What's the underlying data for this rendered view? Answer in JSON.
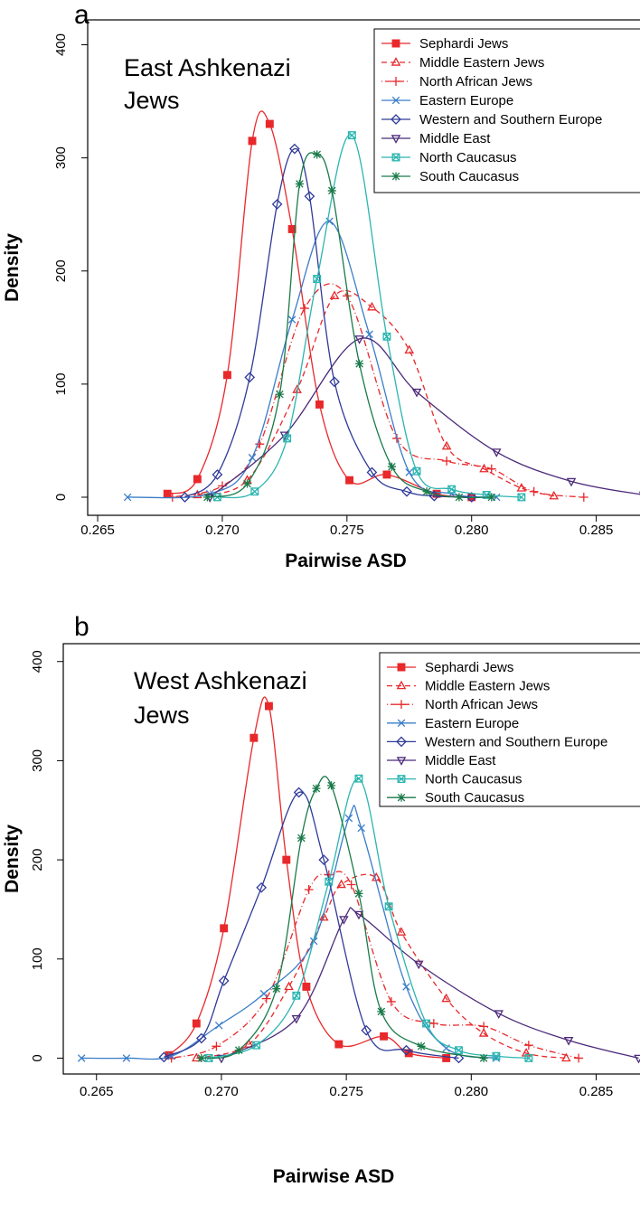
{
  "chart_data": [
    {
      "type": "line",
      "panel": "a",
      "annotation": [
        "East Ashkenazi",
        "Jews"
      ],
      "x_label": "Pairwise ASD",
      "y_label": "Density",
      "xlim": [
        0.2646,
        0.2869
      ],
      "ylim": [
        -16,
        422
      ],
      "xticks": [
        0.265,
        {
          "value": 0.27,
          "label": "0.270"
        },
        0.275,
        {
          "value": 0.28,
          "label": "0.280"
        },
        0.285
      ],
      "yticks": [
        0,
        100,
        200,
        300,
        400
      ],
      "legend": "top-right",
      "series": [
        {
          "name": "Sephardi Jews",
          "color": "#e8282b",
          "line_style": "solid",
          "marker": "square",
          "x": [
            0.2678,
            0.269,
            0.2702,
            0.2712,
            0.2719,
            0.2728,
            0.2739,
            0.2751,
            0.2766,
            0.2786,
            0.28
          ],
          "values": [
            3,
            16,
            108,
            315,
            330,
            237,
            82,
            15,
            20,
            3,
            0
          ]
        },
        {
          "name": "Middle Eastern Jews",
          "color": "#e8282b",
          "line_style": "dashed",
          "marker": "triangle",
          "x": [
            0.269,
            0.271,
            0.273,
            0.2745,
            0.276,
            0.2775,
            0.279,
            0.2805,
            0.282,
            0.2833
          ],
          "values": [
            2,
            15,
            95,
            178,
            168,
            130,
            45,
            25,
            8,
            1
          ]
        },
        {
          "name": "North African Jews",
          "color": "#e8282b",
          "line_style": "dotdash",
          "marker": "plus",
          "x": [
            0.268,
            0.27,
            0.2715,
            0.2733,
            0.275,
            0.277,
            0.279,
            0.2808,
            0.2825,
            0.2845
          ],
          "values": [
            0,
            10,
            47,
            167,
            178,
            52,
            32,
            25,
            5,
            0
          ]
        },
        {
          "name": "Eastern Europe",
          "color": "#3a7dc9",
          "line_style": "solid",
          "marker": "x",
          "x": [
            0.2662,
            0.2695,
            0.2712,
            0.2728,
            0.2743,
            0.2759,
            0.2775,
            0.2792,
            0.281
          ],
          "values": [
            0,
            3,
            35,
            157,
            244,
            144,
            22,
            3,
            0
          ]
        },
        {
          "name": "Western and Southern Europe",
          "color": "#2f3a99",
          "line_style": "solid",
          "marker": "diamond",
          "x": [
            0.2685,
            0.2698,
            0.2711,
            0.2722,
            0.2729,
            0.2735,
            0.2745,
            0.276,
            0.2774,
            0.2785,
            0.28
          ],
          "values": [
            0,
            20,
            106,
            259,
            308,
            266,
            102,
            22,
            5,
            1,
            0
          ]
        },
        {
          "name": "Middle East",
          "color": "#4b2a7a",
          "line_style": "solid",
          "marker": "triangle-down",
          "x": [
            0.2695,
            0.2725,
            0.2755,
            0.2778,
            0.281,
            0.284,
            0.2869
          ],
          "values": [
            0,
            55,
            140,
            93,
            40,
            14,
            2
          ]
        },
        {
          "name": "North Caucasus",
          "color": "#2bb5b0",
          "line_style": "solid",
          "marker": "boxed-x",
          "x": [
            0.2698,
            0.2713,
            0.2726,
            0.2738,
            0.2752,
            0.2766,
            0.2778,
            0.2792,
            0.2806,
            0.282
          ],
          "values": [
            0,
            5,
            52,
            193,
            320,
            142,
            23,
            7,
            2,
            0
          ]
        },
        {
          "name": "South Caucasus",
          "color": "#1a7a4a",
          "line_style": "solid",
          "marker": "asterisk",
          "x": [
            0.2694,
            0.271,
            0.2723,
            0.2731,
            0.2738,
            0.2744,
            0.2755,
            0.2768,
            0.2782,
            0.2795,
            0.2808
          ],
          "values": [
            0,
            12,
            91,
            277,
            303,
            271,
            118,
            27,
            5,
            0,
            0
          ]
        }
      ]
    },
    {
      "type": "line",
      "panel": "b",
      "annotation": [
        "West Ashkenazi",
        "Jews"
      ],
      "x_label": "Pairwise ASD",
      "y_label": "Density",
      "xlim": [
        0.26367,
        0.2869
      ],
      "ylim": [
        -16,
        418
      ],
      "xticks": [
        0.265,
        {
          "value": 0.27,
          "label": "0.270"
        },
        0.275,
        {
          "value": 0.28,
          "label": "0.280"
        },
        0.285
      ],
      "yticks": [
        0,
        100,
        200,
        300,
        400
      ],
      "legend": "top-right",
      "series": [
        {
          "name": "Sephardi Jews",
          "color": "#e8282b",
          "line_style": "solid",
          "marker": "square",
          "x": [
            0.2679,
            0.269,
            0.2701,
            0.2713,
            0.2719,
            0.2726,
            0.2734,
            0.2747,
            0.2765,
            0.2775,
            0.279
          ],
          "values": [
            3,
            35,
            131,
            323,
            355,
            200,
            72,
            14,
            22,
            5,
            0
          ]
        },
        {
          "name": "Middle Eastern Jews",
          "color": "#e8282b",
          "line_style": "dashed",
          "marker": "triangle",
          "x": [
            0.269,
            0.2711,
            0.2727,
            0.2741,
            0.2748,
            0.2762,
            0.2772,
            0.279,
            0.2805,
            0.2822,
            0.2838
          ],
          "values": [
            0,
            14,
            72,
            142,
            175,
            182,
            127,
            60,
            25,
            5,
            0
          ]
        },
        {
          "name": "North African Jews",
          "color": "#e8282b",
          "line_style": "dotdash",
          "marker": "plus",
          "x": [
            0.268,
            0.2698,
            0.2718,
            0.2735,
            0.2743,
            0.2752,
            0.2768,
            0.2785,
            0.2805,
            0.2823,
            0.2843
          ],
          "values": [
            0,
            12,
            60,
            170,
            185,
            175,
            57,
            35,
            32,
            13,
            0
          ]
        },
        {
          "name": "Eastern Europe",
          "color": "#3a7dc9",
          "line_style": "solid",
          "marker": "x",
          "x": [
            0.2644,
            0.2662,
            0.268,
            0.2699,
            0.2717,
            0.2737,
            0.2751,
            0.2756,
            0.2774,
            0.279,
            0.281
          ],
          "values": [
            0,
            0,
            2,
            33,
            65,
            118,
            242,
            232,
            72,
            10,
            0
          ]
        },
        {
          "name": "Western and Southern Europe",
          "color": "#2f3a99",
          "line_style": "solid",
          "marker": "diamond",
          "x": [
            0.2677,
            0.2692,
            0.2701,
            0.2716,
            0.2731,
            0.2741,
            0.2758,
            0.2774,
            0.2795
          ],
          "values": [
            1,
            20,
            78,
            172,
            268,
            200,
            28,
            8,
            0
          ]
        },
        {
          "name": "Middle East",
          "color": "#4b2a7a",
          "line_style": "solid",
          "marker": "triangle-down",
          "x": [
            0.27,
            0.273,
            0.2749,
            0.2755,
            0.2779,
            0.2811,
            0.2839,
            0.2867
          ],
          "values": [
            0,
            40,
            140,
            145,
            95,
            45,
            18,
            0
          ]
        },
        {
          "name": "North Caucasus",
          "color": "#2bb5b0",
          "line_style": "solid",
          "marker": "boxed-x",
          "x": [
            0.2695,
            0.2714,
            0.273,
            0.2743,
            0.2755,
            0.2767,
            0.2782,
            0.2795,
            0.281,
            0.2823
          ],
          "values": [
            0,
            13,
            63,
            178,
            282,
            153,
            35,
            8,
            2,
            0
          ]
        },
        {
          "name": "South Caucasus",
          "color": "#1a7a4a",
          "line_style": "solid",
          "marker": "asterisk",
          "x": [
            0.2692,
            0.2707,
            0.2722,
            0.2732,
            0.2738,
            0.2744,
            0.2755,
            0.2764,
            0.278,
            0.2805
          ],
          "values": [
            0,
            8,
            70,
            222,
            272,
            275,
            166,
            47,
            12,
            0
          ]
        }
      ]
    }
  ]
}
